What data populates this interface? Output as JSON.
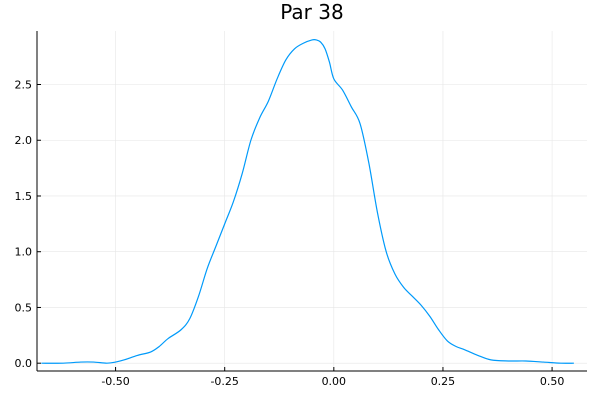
{
  "chart_data": {
    "type": "line",
    "title": "Par 38",
    "xlabel": "",
    "ylabel": "",
    "xlim": [
      -0.68,
      0.58
    ],
    "ylim": [
      -0.07,
      2.98
    ],
    "x_ticks": [
      -0.5,
      -0.25,
      0.0,
      0.25,
      0.5
    ],
    "x_tick_labels": [
      "-0.50",
      "-0.25",
      "0.00",
      "0.25",
      "0.50"
    ],
    "y_ticks": [
      0.0,
      0.5,
      1.0,
      1.5,
      2.0,
      2.5
    ],
    "y_tick_labels": [
      "0.0",
      "0.5",
      "1.0",
      "1.5",
      "2.0",
      "2.5"
    ],
    "grid": true,
    "legend": "none",
    "series": [
      {
        "color": "#009AFA",
        "x": [
          -0.67,
          -0.62,
          -0.58,
          -0.55,
          -0.52,
          -0.5,
          -0.48,
          -0.45,
          -0.42,
          -0.4,
          -0.38,
          -0.35,
          -0.33,
          -0.31,
          -0.29,
          -0.27,
          -0.25,
          -0.23,
          -0.21,
          -0.19,
          -0.17,
          -0.15,
          -0.13,
          -0.11,
          -0.09,
          -0.07,
          -0.05,
          -0.04,
          -0.03,
          -0.02,
          -0.01,
          0.0,
          0.02,
          0.04,
          0.06,
          0.08,
          0.1,
          0.12,
          0.14,
          0.16,
          0.18,
          0.2,
          0.22,
          0.24,
          0.26,
          0.28,
          0.3,
          0.33,
          0.36,
          0.4,
          0.44,
          0.48,
          0.52,
          0.55
        ],
        "y": [
          0.0,
          0.0,
          0.01,
          0.01,
          0.0,
          0.01,
          0.03,
          0.07,
          0.1,
          0.15,
          0.22,
          0.3,
          0.4,
          0.6,
          0.85,
          1.05,
          1.25,
          1.45,
          1.7,
          2.0,
          2.2,
          2.35,
          2.55,
          2.72,
          2.82,
          2.87,
          2.9,
          2.9,
          2.88,
          2.82,
          2.7,
          2.55,
          2.45,
          2.3,
          2.15,
          1.8,
          1.35,
          1.0,
          0.8,
          0.68,
          0.6,
          0.52,
          0.42,
          0.3,
          0.2,
          0.15,
          0.12,
          0.07,
          0.03,
          0.02,
          0.02,
          0.01,
          0.0,
          0.0
        ]
      }
    ]
  }
}
